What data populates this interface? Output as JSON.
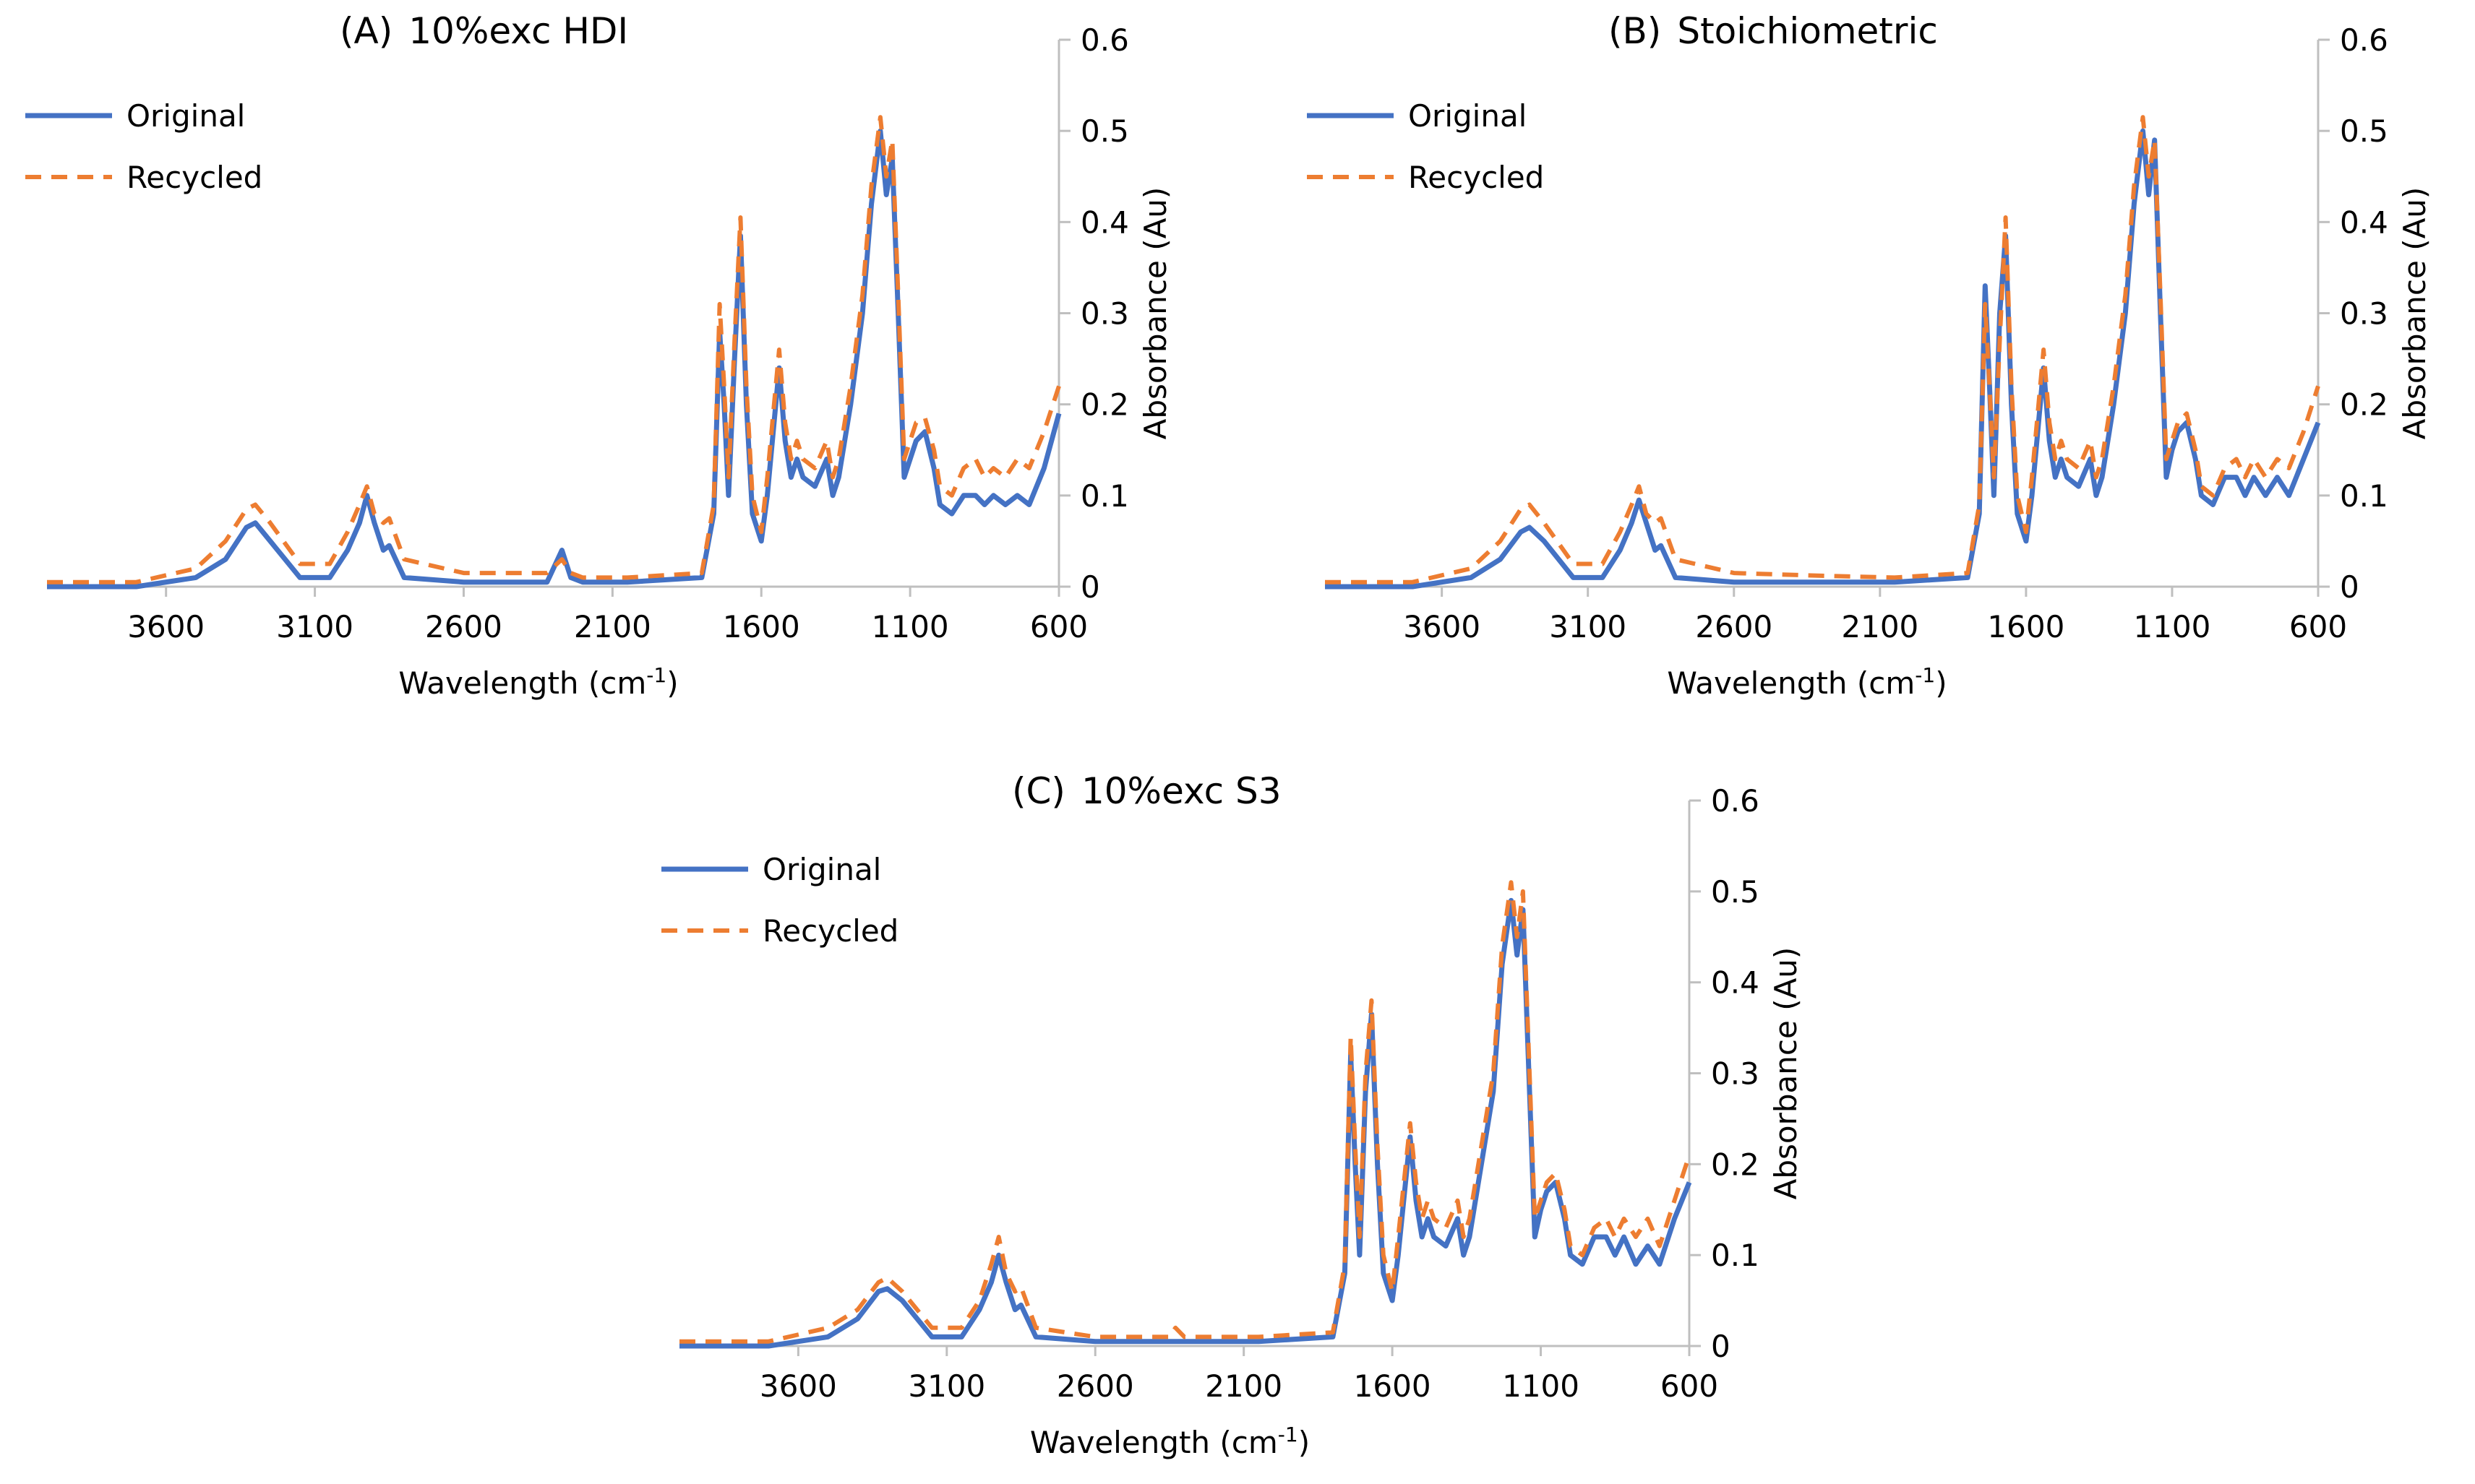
{
  "figure": {
    "description_free": true
  },
  "style": {
    "original_color": "#4472C4",
    "recycled_color": "#ED7D31",
    "axis_color": "#bfbfbf",
    "text_color": "#000000"
  },
  "chart_data": [
    {
      "type": "line",
      "panel_label": "(A)",
      "title": "10%exc HDI",
      "xlabel": "Wavelength (cm",
      "xlabel_sup": "-1",
      "xlabel_close": ")",
      "ylabel": "Absorbance (Au)",
      "xlim": [
        4000,
        600
      ],
      "ylim": [
        0,
        0.6
      ],
      "xticks": [
        3600,
        3100,
        2600,
        2100,
        1600,
        1100,
        600
      ],
      "yticks": [
        0,
        0.1,
        0.2,
        0.3,
        0.4,
        0.5,
        0.6
      ],
      "yticklabels": [
        "0",
        "0.1",
        "0.2",
        "0.3",
        "0.4",
        "0.5",
        "0.6"
      ],
      "legend": [
        "Original",
        "Recycled"
      ],
      "series": [
        {
          "name": "Original",
          "x": [
            4000,
            3700,
            3500,
            3400,
            3330,
            3300,
            3250,
            3150,
            3050,
            2990,
            2950,
            2925,
            2900,
            2870,
            2850,
            2800,
            2600,
            2320,
            2270,
            2240,
            2200,
            2050,
            1800,
            1760,
            1740,
            1725,
            1710,
            1690,
            1670,
            1650,
            1630,
            1600,
            1580,
            1540,
            1520,
            1500,
            1480,
            1460,
            1420,
            1380,
            1360,
            1340,
            1300,
            1260,
            1230,
            1200,
            1180,
            1160,
            1140,
            1120,
            1100,
            1080,
            1050,
            1020,
            1000,
            960,
            920,
            880,
            850,
            820,
            780,
            740,
            700,
            650,
            600
          ],
          "y": [
            0.0,
            0.0,
            0.01,
            0.03,
            0.065,
            0.07,
            0.05,
            0.01,
            0.01,
            0.04,
            0.07,
            0.1,
            0.07,
            0.04,
            0.045,
            0.01,
            0.005,
            0.005,
            0.04,
            0.01,
            0.005,
            0.005,
            0.01,
            0.08,
            0.28,
            0.2,
            0.1,
            0.25,
            0.385,
            0.2,
            0.08,
            0.05,
            0.1,
            0.24,
            0.16,
            0.12,
            0.14,
            0.12,
            0.11,
            0.14,
            0.1,
            0.12,
            0.2,
            0.3,
            0.42,
            0.5,
            0.43,
            0.47,
            0.3,
            0.12,
            0.14,
            0.16,
            0.17,
            0.13,
            0.09,
            0.08,
            0.1,
            0.1,
            0.09,
            0.1,
            0.09,
            0.1,
            0.09,
            0.13,
            0.19
          ]
        },
        {
          "name": "Recycled",
          "x": [
            4000,
            3700,
            3500,
            3400,
            3330,
            3300,
            3250,
            3150,
            3050,
            2990,
            2950,
            2925,
            2900,
            2870,
            2850,
            2800,
            2600,
            2320,
            2270,
            2240,
            2200,
            2050,
            1800,
            1760,
            1740,
            1725,
            1710,
            1690,
            1670,
            1650,
            1630,
            1600,
            1580,
            1540,
            1520,
            1500,
            1480,
            1460,
            1420,
            1380,
            1360,
            1340,
            1300,
            1260,
            1230,
            1200,
            1180,
            1160,
            1140,
            1120,
            1100,
            1080,
            1050,
            1020,
            1000,
            960,
            920,
            880,
            850,
            820,
            780,
            740,
            700,
            650,
            600
          ],
          "y": [
            0.005,
            0.005,
            0.02,
            0.05,
            0.085,
            0.09,
            0.07,
            0.025,
            0.025,
            0.06,
            0.09,
            0.11,
            0.08,
            0.07,
            0.075,
            0.03,
            0.015,
            0.015,
            0.03,
            0.015,
            0.01,
            0.01,
            0.015,
            0.09,
            0.31,
            0.22,
            0.12,
            0.27,
            0.405,
            0.22,
            0.1,
            0.06,
            0.12,
            0.26,
            0.18,
            0.14,
            0.16,
            0.14,
            0.13,
            0.16,
            0.12,
            0.14,
            0.22,
            0.32,
            0.44,
            0.515,
            0.45,
            0.49,
            0.32,
            0.14,
            0.16,
            0.18,
            0.185,
            0.15,
            0.11,
            0.1,
            0.13,
            0.14,
            0.12,
            0.13,
            0.12,
            0.14,
            0.13,
            0.17,
            0.22
          ]
        }
      ]
    },
    {
      "type": "line",
      "panel_label": "(B)",
      "title": "Stoichiometric",
      "xlabel": "Wavelength (cm",
      "xlabel_sup": "-1",
      "xlabel_close": ")",
      "ylabel": "Absorbance (Au)",
      "xlim": [
        4000,
        600
      ],
      "ylim": [
        0,
        0.6
      ],
      "xticks": [
        3600,
        3100,
        2600,
        2100,
        1600,
        1100,
        600
      ],
      "yticks": [
        0,
        0.1,
        0.2,
        0.3,
        0.4,
        0.5,
        0.6
      ],
      "yticklabels": [
        "0",
        "0.1",
        "0.2",
        "0.3",
        "0.4",
        "0.5",
        "0.6"
      ],
      "legend": [
        "Original",
        "Recycled"
      ],
      "series": [
        {
          "name": "Original",
          "x": [
            4000,
            3700,
            3500,
            3400,
            3330,
            3300,
            3250,
            3150,
            3050,
            2990,
            2950,
            2925,
            2900,
            2870,
            2850,
            2800,
            2600,
            2300,
            2050,
            1800,
            1760,
            1740,
            1725,
            1710,
            1690,
            1670,
            1650,
            1630,
            1600,
            1580,
            1540,
            1520,
            1500,
            1480,
            1460,
            1420,
            1380,
            1360,
            1340,
            1300,
            1260,
            1230,
            1200,
            1180,
            1160,
            1140,
            1120,
            1100,
            1080,
            1050,
            1020,
            1000,
            960,
            920,
            880,
            850,
            820,
            780,
            740,
            700,
            650,
            600
          ],
          "y": [
            0.0,
            0.0,
            0.01,
            0.03,
            0.06,
            0.065,
            0.05,
            0.01,
            0.01,
            0.04,
            0.07,
            0.095,
            0.07,
            0.04,
            0.045,
            0.01,
            0.005,
            0.005,
            0.005,
            0.01,
            0.08,
            0.33,
            0.22,
            0.1,
            0.3,
            0.385,
            0.2,
            0.08,
            0.05,
            0.1,
            0.24,
            0.16,
            0.12,
            0.14,
            0.12,
            0.11,
            0.14,
            0.1,
            0.12,
            0.2,
            0.3,
            0.42,
            0.5,
            0.43,
            0.49,
            0.3,
            0.12,
            0.15,
            0.17,
            0.18,
            0.14,
            0.1,
            0.09,
            0.12,
            0.12,
            0.1,
            0.12,
            0.1,
            0.12,
            0.1,
            0.14,
            0.18
          ]
        },
        {
          "name": "Recycled",
          "x": [
            4000,
            3700,
            3500,
            3400,
            3330,
            3300,
            3250,
            3150,
            3050,
            2990,
            2950,
            2925,
            2900,
            2870,
            2850,
            2800,
            2600,
            2300,
            2050,
            1800,
            1760,
            1740,
            1725,
            1710,
            1690,
            1670,
            1650,
            1630,
            1600,
            1580,
            1540,
            1520,
            1500,
            1480,
            1460,
            1420,
            1380,
            1360,
            1340,
            1300,
            1260,
            1230,
            1200,
            1180,
            1160,
            1140,
            1120,
            1100,
            1080,
            1050,
            1020,
            1000,
            960,
            920,
            880,
            850,
            820,
            780,
            740,
            700,
            650,
            600
          ],
          "y": [
            0.005,
            0.005,
            0.02,
            0.05,
            0.085,
            0.09,
            0.07,
            0.025,
            0.025,
            0.06,
            0.09,
            0.11,
            0.08,
            0.07,
            0.075,
            0.03,
            0.015,
            0.012,
            0.01,
            0.015,
            0.09,
            0.31,
            0.22,
            0.12,
            0.27,
            0.405,
            0.22,
            0.1,
            0.06,
            0.12,
            0.26,
            0.18,
            0.14,
            0.16,
            0.14,
            0.13,
            0.16,
            0.12,
            0.14,
            0.22,
            0.32,
            0.44,
            0.515,
            0.45,
            0.49,
            0.32,
            0.14,
            0.16,
            0.18,
            0.19,
            0.15,
            0.11,
            0.1,
            0.13,
            0.14,
            0.12,
            0.14,
            0.12,
            0.14,
            0.13,
            0.17,
            0.22
          ]
        }
      ]
    },
    {
      "type": "line",
      "panel_label": "(C)",
      "title": "10%exc S3",
      "xlabel": "Wavelength (cm",
      "xlabel_sup": "-1",
      "xlabel_close": ")",
      "ylabel": "Absorbance (Au)",
      "xlim": [
        4000,
        600
      ],
      "ylim": [
        0,
        0.6
      ],
      "xticks": [
        3600,
        3100,
        2600,
        2100,
        1600,
        1100,
        600
      ],
      "yticks": [
        0,
        0.1,
        0.2,
        0.3,
        0.4,
        0.5,
        0.6
      ],
      "yticklabels": [
        "0",
        "0.1",
        "0.2",
        "0.3",
        "0.4",
        "0.5",
        "0.6"
      ],
      "legend": [
        "Original",
        "Recycled"
      ],
      "series": [
        {
          "name": "Original",
          "x": [
            4000,
            3700,
            3500,
            3400,
            3330,
            3300,
            3250,
            3150,
            3050,
            2990,
            2950,
            2925,
            2900,
            2870,
            2850,
            2800,
            2600,
            2300,
            2050,
            1800,
            1760,
            1740,
            1725,
            1710,
            1690,
            1670,
            1650,
            1630,
            1600,
            1580,
            1540,
            1520,
            1500,
            1480,
            1460,
            1420,
            1380,
            1360,
            1340,
            1300,
            1260,
            1230,
            1200,
            1180,
            1160,
            1140,
            1120,
            1100,
            1080,
            1050,
            1020,
            1000,
            960,
            920,
            880,
            850,
            820,
            780,
            740,
            700,
            650,
            600
          ],
          "y": [
            0.0,
            0.0,
            0.01,
            0.03,
            0.06,
            0.063,
            0.05,
            0.01,
            0.01,
            0.04,
            0.07,
            0.1,
            0.07,
            0.04,
            0.045,
            0.01,
            0.005,
            0.005,
            0.005,
            0.01,
            0.08,
            0.32,
            0.2,
            0.1,
            0.28,
            0.365,
            0.2,
            0.08,
            0.05,
            0.1,
            0.23,
            0.16,
            0.12,
            0.14,
            0.12,
            0.11,
            0.14,
            0.1,
            0.12,
            0.2,
            0.28,
            0.42,
            0.49,
            0.43,
            0.48,
            0.3,
            0.12,
            0.15,
            0.17,
            0.18,
            0.14,
            0.1,
            0.09,
            0.12,
            0.12,
            0.1,
            0.12,
            0.09,
            0.11,
            0.09,
            0.14,
            0.18
          ]
        },
        {
          "name": "Recycled",
          "x": [
            4000,
            3700,
            3500,
            3400,
            3330,
            3300,
            3250,
            3150,
            3050,
            2990,
            2950,
            2925,
            2900,
            2870,
            2850,
            2800,
            2600,
            2350,
            2330,
            2300,
            2050,
            1800,
            1760,
            1740,
            1725,
            1710,
            1690,
            1670,
            1650,
            1630,
            1600,
            1580,
            1540,
            1520,
            1500,
            1480,
            1460,
            1420,
            1380,
            1360,
            1340,
            1300,
            1260,
            1230,
            1200,
            1180,
            1160,
            1140,
            1120,
            1100,
            1080,
            1050,
            1020,
            1000,
            960,
            920,
            880,
            850,
            820,
            780,
            740,
            700,
            650,
            600
          ],
          "y": [
            0.005,
            0.005,
            0.02,
            0.04,
            0.07,
            0.075,
            0.06,
            0.02,
            0.02,
            0.05,
            0.09,
            0.12,
            0.08,
            0.06,
            0.065,
            0.02,
            0.01,
            0.01,
            0.02,
            0.01,
            0.01,
            0.015,
            0.09,
            0.34,
            0.22,
            0.12,
            0.3,
            0.38,
            0.22,
            0.1,
            0.06,
            0.12,
            0.245,
            0.18,
            0.14,
            0.16,
            0.14,
            0.13,
            0.16,
            0.12,
            0.14,
            0.22,
            0.3,
            0.44,
            0.51,
            0.45,
            0.5,
            0.32,
            0.14,
            0.16,
            0.18,
            0.19,
            0.15,
            0.11,
            0.1,
            0.13,
            0.14,
            0.12,
            0.14,
            0.12,
            0.14,
            0.11,
            0.16,
            0.21
          ]
        }
      ]
    }
  ]
}
